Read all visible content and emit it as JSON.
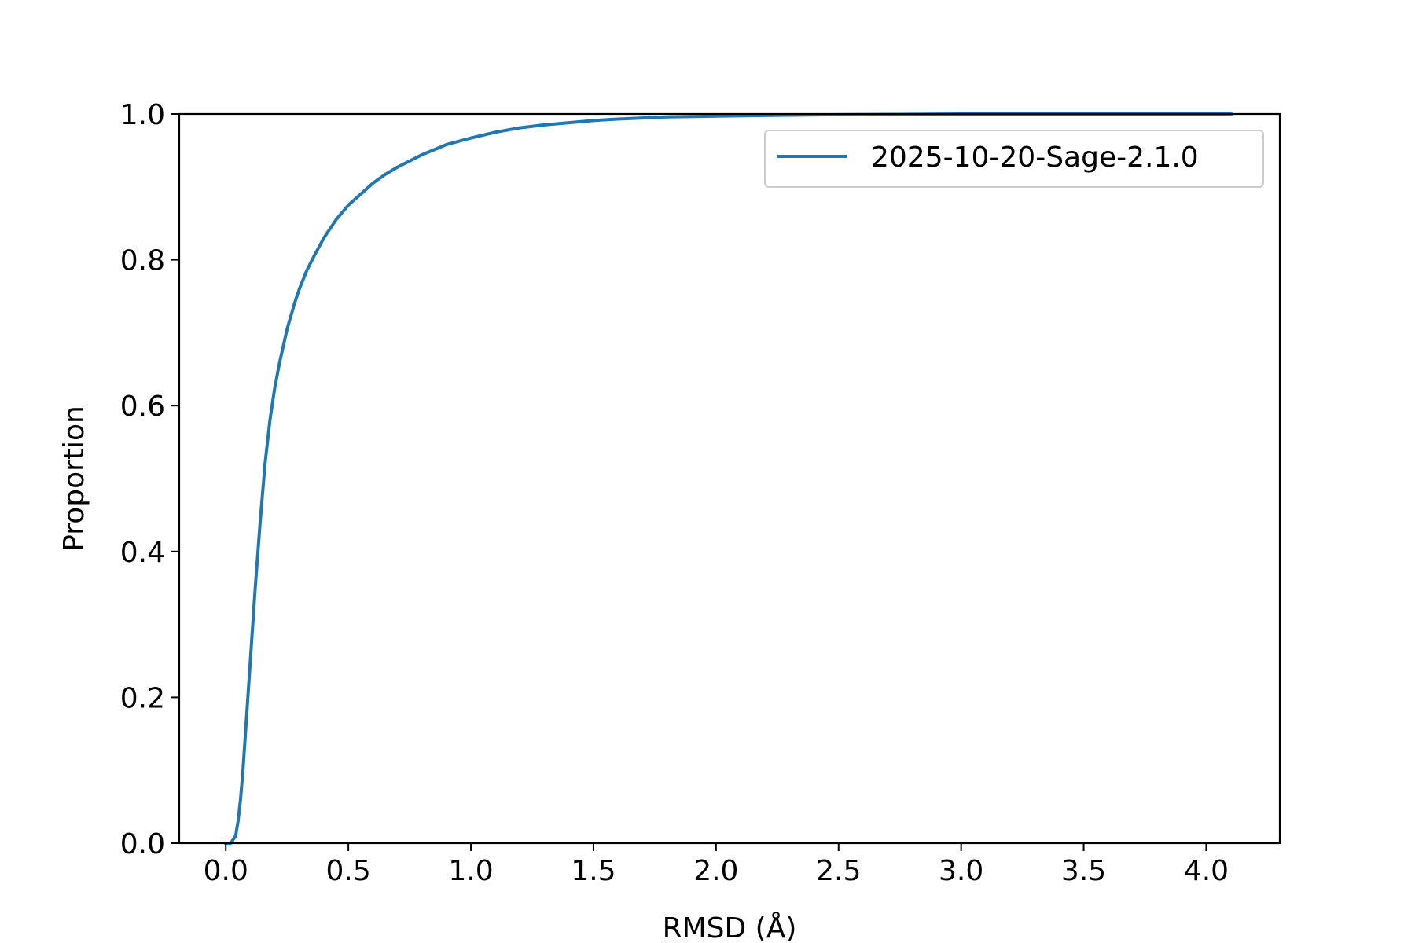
{
  "chart_data": {
    "type": "line",
    "title": "",
    "xlabel": "RMSD (Å)",
    "ylabel": "Proportion",
    "xlim": [
      -0.19,
      4.3
    ],
    "ylim": [
      0.0,
      1.0
    ],
    "x_ticks": [
      0.0,
      0.5,
      1.0,
      1.5,
      2.0,
      2.5,
      3.0,
      3.5,
      4.0
    ],
    "x_tick_labels": [
      "0.0",
      "0.5",
      "1.0",
      "1.5",
      "2.0",
      "2.5",
      "3.0",
      "3.5",
      "4.0"
    ],
    "y_ticks": [
      0.0,
      0.2,
      0.4,
      0.6,
      0.8,
      1.0
    ],
    "y_tick_labels": [
      "0.0",
      "0.2",
      "0.4",
      "0.6",
      "0.8",
      "1.0"
    ],
    "grid": false,
    "legend_position": "top-right",
    "series": [
      {
        "name": "2025-10-20-Sage-2.1.0",
        "color": "#1f77b4",
        "x": [
          0.0,
          0.02,
          0.03,
          0.04,
          0.05,
          0.06,
          0.07,
          0.08,
          0.09,
          0.1,
          0.12,
          0.14,
          0.16,
          0.18,
          0.2,
          0.22,
          0.25,
          0.28,
          0.3,
          0.33,
          0.36,
          0.4,
          0.45,
          0.5,
          0.55,
          0.6,
          0.65,
          0.7,
          0.8,
          0.9,
          1.0,
          1.1,
          1.2,
          1.3,
          1.4,
          1.5,
          1.6,
          1.8,
          2.0,
          2.2,
          2.5,
          3.0,
          3.5,
          4.1
        ],
        "y": [
          0.0,
          0.0,
          0.005,
          0.01,
          0.03,
          0.06,
          0.1,
          0.15,
          0.2,
          0.25,
          0.35,
          0.44,
          0.52,
          0.58,
          0.625,
          0.66,
          0.705,
          0.74,
          0.76,
          0.785,
          0.805,
          0.83,
          0.855,
          0.875,
          0.89,
          0.905,
          0.917,
          0.927,
          0.944,
          0.958,
          0.967,
          0.975,
          0.981,
          0.985,
          0.988,
          0.991,
          0.993,
          0.996,
          0.997,
          0.998,
          0.999,
          1.0,
          1.0,
          1.0
        ]
      }
    ]
  }
}
